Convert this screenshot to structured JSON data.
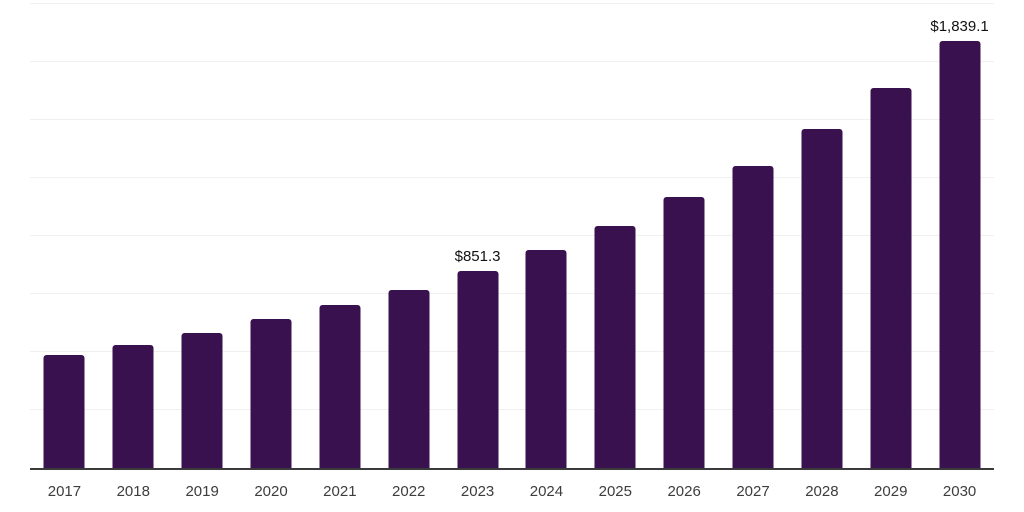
{
  "chart": {
    "background": "#FFFFFF",
    "bar_color": "#38114E",
    "grid_color": "#F0F0F0",
    "axis_color": "#3A3A3A",
    "tick_label_color": "#3D3D3D",
    "value_label_color": "#111111"
  },
  "chart_data": {
    "type": "bar",
    "title": "",
    "xlabel": "",
    "ylabel": "",
    "categories": [
      "2017",
      "2018",
      "2019",
      "2020",
      "2021",
      "2022",
      "2023",
      "2024",
      "2025",
      "2026",
      "2027",
      "2028",
      "2029",
      "2030"
    ],
    "values": [
      489,
      532,
      584,
      641,
      702,
      769,
      851.3,
      940,
      1045,
      1167,
      1302,
      1460,
      1639,
      1839.1
    ],
    "labeled_points": [
      {
        "category": "2023",
        "label": "$851.3"
      },
      {
        "category": "2030",
        "label": "$1,839.1"
      }
    ],
    "ylim": [
      0,
      2000
    ],
    "gridline_step": 250,
    "grid": true,
    "legend": "none"
  }
}
